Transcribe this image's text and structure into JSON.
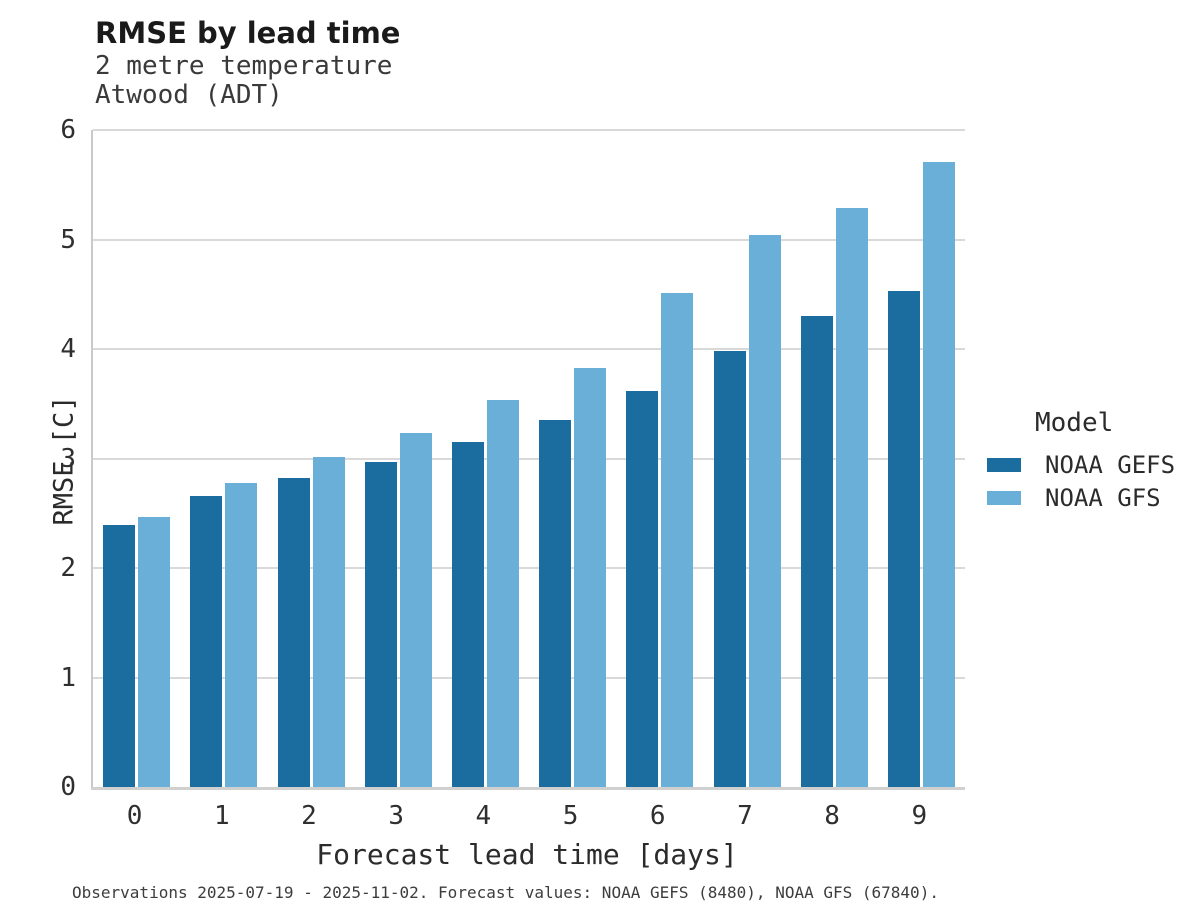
{
  "header": {
    "title": "RMSE by lead time",
    "subtitle_lines": [
      "2 metre temperature",
      "Atwood (ADT)"
    ]
  },
  "legend": {
    "title": "Model",
    "items": [
      {
        "label": "NOAA GEFS",
        "color": "#1a6d9e"
      },
      {
        "label": "NOAA GFS",
        "color": "#69afd8"
      }
    ]
  },
  "footer": {
    "caption": "Observations 2025-07-19 - 2025-11-02. Forecast values: NOAA GEFS (8480), NOAA GFS (67840)."
  },
  "chart_data": {
    "type": "bar",
    "title": "RMSE by lead time",
    "subtitle": [
      "2 metre temperature",
      "Atwood (ADT)"
    ],
    "xlabel": "Forecast lead time [days]",
    "ylabel": "RMSE [C]",
    "categories": [
      "0",
      "1",
      "2",
      "3",
      "4",
      "5",
      "6",
      "7",
      "8",
      "9"
    ],
    "series": [
      {
        "name": "NOAA GEFS",
        "color": "#1a6d9e",
        "values": [
          2.39,
          2.66,
          2.82,
          2.97,
          3.15,
          3.35,
          3.62,
          3.98,
          4.3,
          4.53
        ]
      },
      {
        "name": "NOAA GFS",
        "color": "#69afd8",
        "values": [
          2.47,
          2.78,
          3.01,
          3.23,
          3.53,
          3.83,
          4.51,
          5.04,
          5.29,
          5.71
        ]
      }
    ],
    "ylim": [
      0,
      6
    ],
    "yticks": [
      0,
      1,
      2,
      3,
      4,
      5,
      6
    ],
    "grid": true,
    "grid_color": "#d9d9d9",
    "spine_color": "#c9c9c9",
    "legend_title": "Model",
    "legend_position": "right"
  }
}
